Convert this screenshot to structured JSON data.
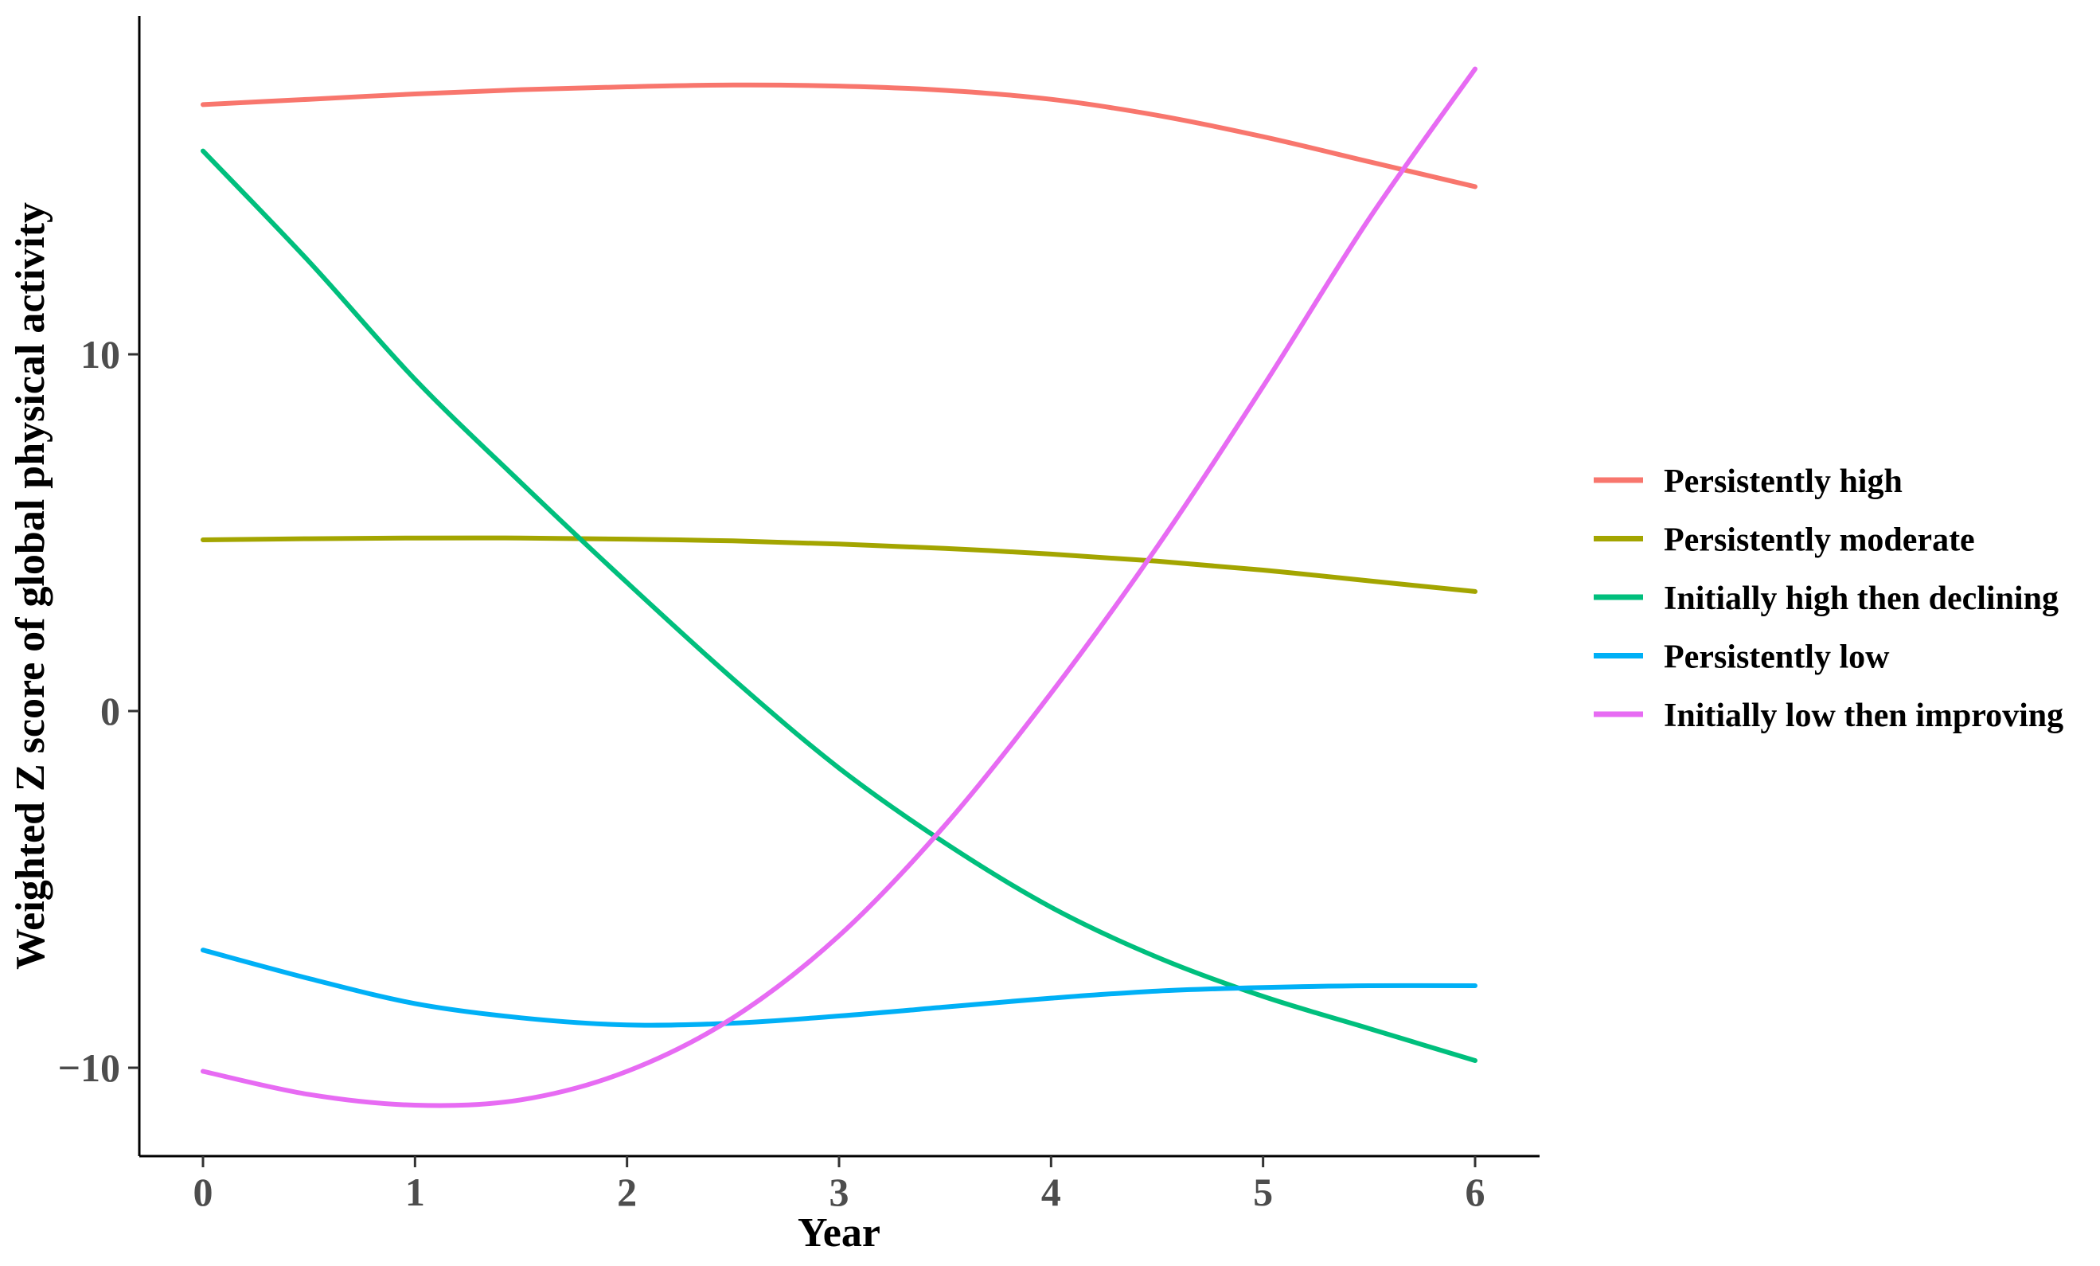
{
  "chart_data": {
    "type": "line",
    "xlabel": "Year",
    "ylabel": "Weighted Z score of global physical activity",
    "xlim": [
      -0.3,
      6.3
    ],
    "ylim": [
      -12.5,
      19.5
    ],
    "x_ticks": [
      0,
      1,
      2,
      3,
      4,
      5,
      6
    ],
    "x_tick_labels": [
      "0",
      "1",
      "2",
      "3",
      "4",
      "5",
      "6"
    ],
    "y_ticks": [
      -10,
      0,
      10
    ],
    "y_tick_labels": [
      "−10",
      "0",
      "10"
    ],
    "grid": false,
    "legend_position": "right",
    "x": [
      0,
      0.5,
      1,
      1.5,
      2,
      2.5,
      3,
      3.5,
      4,
      4.5,
      5,
      5.5,
      6
    ],
    "series": [
      {
        "name": "Persistently high",
        "color": "#F8766D",
        "values": [
          17.0,
          17.15,
          17.3,
          17.42,
          17.5,
          17.55,
          17.52,
          17.4,
          17.15,
          16.7,
          16.1,
          15.4,
          14.7
        ]
      },
      {
        "name": "Persistently moderate",
        "color": "#A3A500",
        "values": [
          4.8,
          4.83,
          4.85,
          4.85,
          4.82,
          4.77,
          4.68,
          4.56,
          4.4,
          4.2,
          3.95,
          3.65,
          3.35
        ]
      },
      {
        "name": "Initially high then declining",
        "color": "#00BF7D",
        "values": [
          15.7,
          12.6,
          9.3,
          6.4,
          3.6,
          0.9,
          -1.6,
          -3.7,
          -5.5,
          -6.9,
          -8.0,
          -8.9,
          -9.8
        ]
      },
      {
        "name": "Persistently low",
        "color": "#00B0F6",
        "values": [
          -6.7,
          -7.5,
          -8.2,
          -8.6,
          -8.8,
          -8.75,
          -8.55,
          -8.3,
          -8.05,
          -7.85,
          -7.75,
          -7.7,
          -7.7
        ]
      },
      {
        "name": "Initially low then improving",
        "color": "#E76BF3",
        "values": [
          -10.1,
          -10.75,
          -11.05,
          -10.9,
          -10.1,
          -8.6,
          -6.3,
          -3.2,
          0.5,
          4.6,
          9.1,
          13.8,
          18.0
        ]
      }
    ]
  }
}
